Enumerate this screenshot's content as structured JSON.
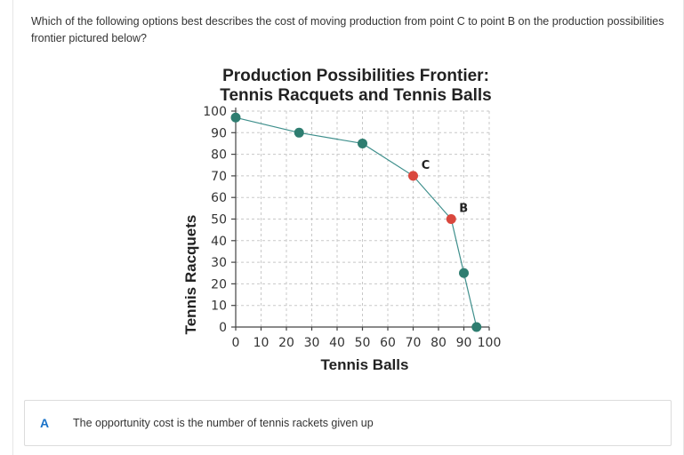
{
  "question": {
    "text": "Which of the following options best describes the cost of moving production from point C to point B on the production possibilities frontier pictured below?"
  },
  "options": [
    {
      "letter": "A",
      "text": "The opportunity cost is the number of tennis rackets given up"
    }
  ],
  "colors": {
    "series": "#3e8f8c",
    "point_default": "#2e7d70",
    "point_highlight": "#d9473d",
    "option_letter": "#1a73c9"
  },
  "chart_data": {
    "type": "line",
    "title_lines": [
      "Production Possibilities Frontier:",
      "Tennis Racquets and Tennis Balls"
    ],
    "xlabel": "Tennis Balls",
    "ylabel": "Tennis Racquets",
    "xlim": [
      0,
      100
    ],
    "ylim": [
      0,
      100
    ],
    "xticks": [
      0,
      10,
      20,
      30,
      40,
      50,
      60,
      70,
      80,
      90,
      100
    ],
    "yticks": [
      0,
      10,
      20,
      30,
      40,
      50,
      60,
      70,
      80,
      90,
      100
    ],
    "grid": true,
    "series": [
      {
        "points": [
          {
            "x": 0,
            "y": 97,
            "label": "",
            "highlight": false
          },
          {
            "x": 25,
            "y": 90,
            "label": "",
            "highlight": false
          },
          {
            "x": 50,
            "y": 85,
            "label": "",
            "highlight": false
          },
          {
            "x": 70,
            "y": 70,
            "label": "C",
            "highlight": true
          },
          {
            "x": 85,
            "y": 50,
            "label": "B",
            "highlight": true
          },
          {
            "x": 90,
            "y": 25,
            "label": "",
            "highlight": false
          },
          {
            "x": 95,
            "y": 0,
            "label": "",
            "highlight": false
          }
        ]
      }
    ]
  }
}
